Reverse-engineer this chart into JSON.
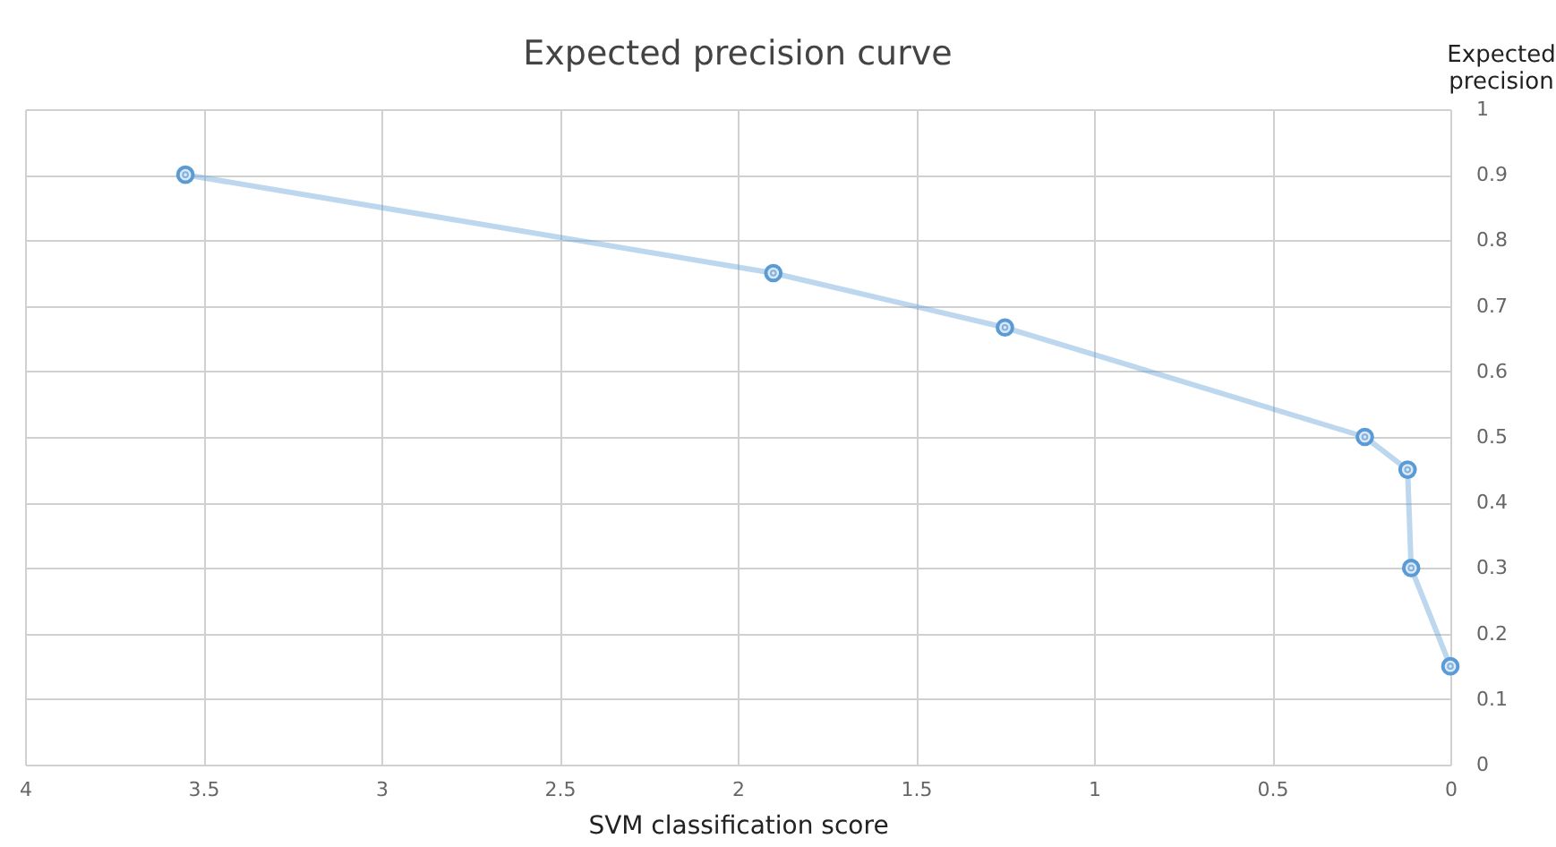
{
  "chart_data": {
    "type": "line",
    "title": "Expected precision curve",
    "xlabel": "SVM classification score",
    "ylabel": "Expected precision",
    "x": [
      3.55,
      1.9,
      1.25,
      0.24,
      0.12,
      0.11,
      0.0
    ],
    "series": [
      {
        "color": "#5b9bd5",
        "values": [
          0.9,
          0.75,
          0.667,
          0.5,
          0.45,
          0.3,
          0.15
        ]
      }
    ],
    "xlim": [
      4,
      0
    ],
    "xticks": [
      4,
      3.5,
      3,
      2.5,
      2,
      1.5,
      1,
      0.5,
      0
    ],
    "ylim": [
      0,
      1
    ],
    "yticks": [
      0,
      0.1,
      0.2,
      0.3,
      0.4,
      0.5,
      0.6,
      0.7,
      0.8,
      0.9,
      1
    ],
    "grid": true,
    "marker": "circle",
    "line_style": "solid"
  }
}
